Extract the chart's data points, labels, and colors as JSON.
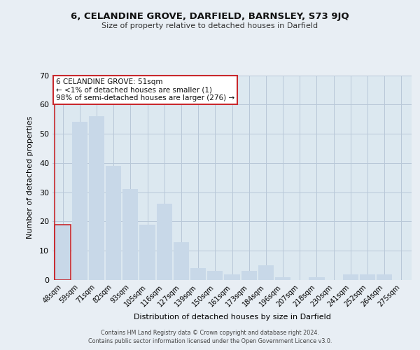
{
  "title": "6, CELANDINE GROVE, DARFIELD, BARNSLEY, S73 9JQ",
  "subtitle": "Size of property relative to detached houses in Darfield",
  "xlabel": "Distribution of detached houses by size in Darfield",
  "ylabel": "Number of detached properties",
  "bar_labels": [
    "48sqm",
    "59sqm",
    "71sqm",
    "82sqm",
    "93sqm",
    "105sqm",
    "116sqm",
    "127sqm",
    "139sqm",
    "150sqm",
    "161sqm",
    "173sqm",
    "184sqm",
    "196sqm",
    "207sqm",
    "218sqm",
    "230sqm",
    "241sqm",
    "252sqm",
    "264sqm",
    "275sqm"
  ],
  "bar_values": [
    19,
    54,
    56,
    39,
    31,
    19,
    26,
    13,
    4,
    3,
    2,
    3,
    5,
    1,
    0,
    1,
    0,
    2,
    2,
    2,
    0
  ],
  "bar_color": "#c8d8e8",
  "highlight_bar_index": 0,
  "highlight_edge_color": "#c8282d",
  "ylim": [
    0,
    70
  ],
  "yticks": [
    0,
    10,
    20,
    30,
    40,
    50,
    60,
    70
  ],
  "annotation_line1": "6 CELANDINE GROVE: 51sqm",
  "annotation_line2": "← <1% of detached houses are smaller (1)",
  "annotation_line3": "98% of semi-detached houses are larger (276) →",
  "footer_line1": "Contains HM Land Registry data © Crown copyright and database right 2024.",
  "footer_line2": "Contains public sector information licensed under the Open Government Licence v3.0.",
  "background_color": "#e8eef4",
  "plot_bg_color": "#dce8f0",
  "grid_color": "#b8c8d8"
}
